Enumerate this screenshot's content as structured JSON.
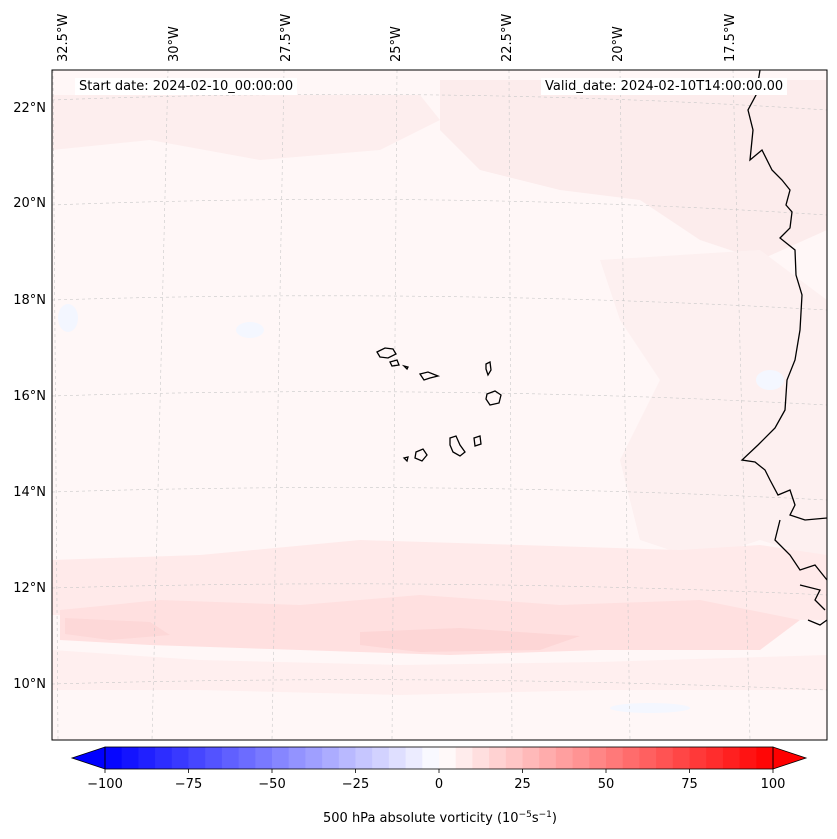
{
  "map": {
    "start_date_label": "Start date: 2024-02-10_00:00:00",
    "valid_date_label": "Valid_date: 2024-02-10T14:00:00.00",
    "lon_labels": [
      "32.5°W",
      "30°W",
      "27.5°W",
      "25°W",
      "22.5°W",
      "20°W",
      "17.5°W"
    ],
    "lat_labels": [
      "22°N",
      "20°N",
      "18°N",
      "16°N",
      "14°N",
      "12°N",
      "10°N"
    ],
    "field_name": "500 hPa absolute vorticity"
  },
  "colorbar": {
    "tick_labels": [
      "−100",
      "−75",
      "−50",
      "−25",
      "0",
      "25",
      "50",
      "75",
      "100"
    ],
    "range": [
      -100,
      100
    ],
    "label": "500 hPa absolute vorticity (10",
    "label_exp1": "−5",
    "label_mid": "s",
    "label_exp2": "−1",
    "label_end": ")"
  },
  "colors": {
    "low": "#0000ff",
    "mid": "#ffffff",
    "high": "#ff0000",
    "band_light": "#fff3f3",
    "band_medium": "#ffe2e2",
    "coast": "#000000"
  }
}
